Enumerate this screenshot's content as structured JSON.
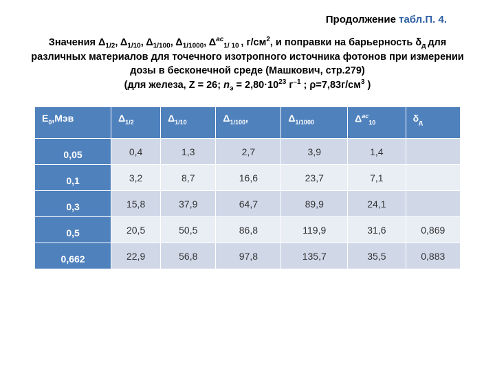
{
  "continuation": {
    "prefix": "Продолжение ",
    "link": "табл.П. 4."
  },
  "caption": {
    "seg1": "Значения Δ",
    "sub1": "1/2",
    "seg2": ", Δ",
    "sub2": "1/10",
    "seg3": ", Δ",
    "sub3": "1/100",
    "seg4": ", Δ",
    "sub4": "1/1000",
    "seg5": ", Δ",
    "sup5": "ас",
    "sub5": "1/ 10 ",
    "seg6": ", г/см",
    "sup6": "2",
    "seg7": ", и поправки на барьерность δ",
    "sub7": "д ",
    "seg8": "для различных материалов для точечного изотропного источника фотонов при измерении дозы в бесконечной среде (Машкович, стр.279)",
    "seg9": "(для железа, Z = 26; ",
    "ital9": "n",
    "sub9": "э",
    "seg10": " = 2,80·10",
    "sup10": "23",
    "seg11": " г",
    "sup11": "–1",
    "seg12": " ;  ρ=7,83г/см",
    "sup12": "3",
    "seg13": " )"
  },
  "table": {
    "headers": {
      "c1a": "E",
      "c1sub": "0",
      "c1b": ",Мэв",
      "c2": "Δ",
      "c2sub": "1/2",
      "c3": "Δ",
      "c3sub": "1/10",
      "c4a": "Δ",
      "c4sub": "1/100",
      "c4b": ",",
      "c5": "Δ",
      "c5sub": "1/1000",
      "c6": "Δ",
      "c6sup": "ас",
      "c6sub": "10",
      "c7": "δ",
      "c7sub": "д"
    },
    "rows": [
      {
        "e": "0,05",
        "d12": "0,4",
        "d110": "1,3",
        "d1100": "2,7",
        "d11000": "3,9",
        "das": "1,4",
        "dd": "",
        "hl": false
      },
      {
        "e": "0,1",
        "d12": "3,2",
        "d110": "8,7",
        "d1100": "16,6",
        "d11000": "23,7",
        "das": "7,1",
        "dd": "",
        "hl": false
      },
      {
        "e": "0,3",
        "d12": "15,8",
        "d110": "37,9",
        "d1100": "64,7",
        "d11000": "89,9",
        "das": "24,1",
        "dd": "",
        "hl": false
      },
      {
        "e": "0,5",
        "d12": "20,5",
        "d110": "50,5",
        "d1100": "86,8",
        "d11000": "119,9",
        "das": "31,6",
        "dd": "0,869",
        "hl": false
      },
      {
        "e": "0,662",
        "d12": "22,9",
        "d110": "56,8",
        "d1100": "97,8",
        "d11000": "135,7",
        "das": "35,5",
        "dd": "0,883",
        "hl": true
      }
    ],
    "colors": {
      "header_bg": "#4f81bd",
      "band_a": "#d0d8e8",
      "band_b": "#e9edf4",
      "highlight_text": "#c0504d"
    }
  }
}
